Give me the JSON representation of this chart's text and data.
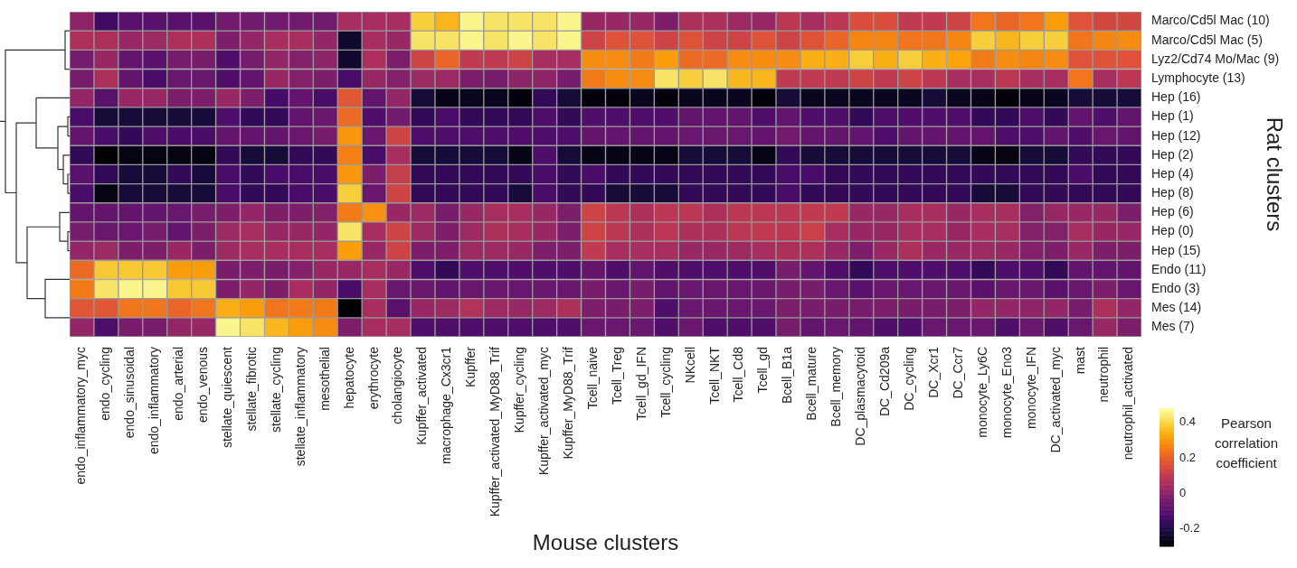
{
  "chart_data": {
    "type": "heatmap",
    "categories": [
      "endo_inflammatory_myc",
      "endo_cycling",
      "endo_sinusoidal",
      "endo_inflammatory",
      "endo_arterial",
      "endo_venous",
      "stellate_quiescent",
      "stellate_fibrotic",
      "stellate_cycling",
      "stellate_inflammatory",
      "mesothelial",
      "hepatocyte",
      "erythrocyte",
      "cholangiocyte",
      "Kupffer_activated",
      "macrophage_Cx3cr1",
      "Kupffer",
      "Kupffer_activated_MyD88_Trif",
      "Kupffer_cycling",
      "Kupffer_activated_myc",
      "Kupffer_MyD88_Trif",
      "Tcell_naive",
      "Tcell_Treg",
      "Tcell_gd_IFN",
      "Tcell_cycling",
      "NKcell",
      "Tcell_NKT",
      "Tcell_Cd8",
      "Tcell_gd",
      "Bcell_B1a",
      "Bcell_mature",
      "Bcell_memory",
      "DC_plasmacytoid",
      "DC_Cd209a",
      "DC_cycling",
      "DC_Xcr1",
      "DC_Ccr7",
      "monocyte_Ly6C",
      "monocyte_Eno3",
      "monocyte_IFN",
      "DC_activated_myc",
      "mast",
      "neutrophil",
      "neutrophil_activated"
    ],
    "y_categories": [
      "Marco/Cd5l Mac (10)",
      "Marco/Cd5l Mac (5)",
      "Lyz2/Cd74 Mo/Mac (9)",
      "Lymphocyte (13)",
      "Hep (16)",
      "Hep (1)",
      "Hep (12)",
      "Hep (2)",
      "Hep (4)",
      "Hep (8)",
      "Hep (6)",
      "Hep (0)",
      "Hep (15)",
      "Endo (11)",
      "Endo (3)",
      "Mes (14)",
      "Mes (7)"
    ],
    "cells": [
      [
        0.0,
        -0.15,
        -0.1,
        -0.1,
        -0.1,
        -0.1,
        -0.05,
        -0.05,
        -0.05,
        -0.05,
        -0.05,
        0.05,
        0.05,
        0.05,
        0.39,
        0.35,
        0.46,
        0.43,
        0.43,
        0.43,
        0.46,
        0.02,
        0.02,
        0.02,
        -0.03,
        0.06,
        0.06,
        0.03,
        0.02,
        0.09,
        0.05,
        0.09,
        0.16,
        0.16,
        0.1,
        0.1,
        0.13,
        0.24,
        0.21,
        0.24,
        0.31,
        0.17,
        0.14,
        0.14
      ],
      [
        0.06,
        0.06,
        0.02,
        0.03,
        0.06,
        0.06,
        -0.03,
        0.01,
        0.05,
        0.05,
        0.01,
        -0.24,
        0.05,
        0.02,
        0.43,
        0.43,
        0.46,
        0.43,
        0.46,
        0.43,
        0.46,
        0.13,
        0.17,
        0.17,
        0.13,
        0.17,
        0.13,
        0.13,
        0.17,
        0.13,
        0.17,
        0.21,
        0.27,
        0.27,
        0.24,
        0.24,
        0.27,
        0.39,
        0.35,
        0.39,
        0.39,
        0.24,
        0.27,
        0.28
      ],
      [
        -0.04,
        0.02,
        -0.08,
        -0.1,
        -0.04,
        -0.04,
        -0.12,
        -0.04,
        0.01,
        -0.02,
        0.0,
        -0.24,
        0.06,
        -0.03,
        0.13,
        0.21,
        0.1,
        0.1,
        0.13,
        0.05,
        0.05,
        0.28,
        0.28,
        0.25,
        0.31,
        0.22,
        0.22,
        0.28,
        0.28,
        0.28,
        0.34,
        0.34,
        0.39,
        0.34,
        0.39,
        0.34,
        0.32,
        0.25,
        0.28,
        0.27,
        0.28,
        0.17,
        0.17,
        0.17
      ],
      [
        -0.04,
        0.06,
        -0.08,
        -0.13,
        -0.07,
        -0.07,
        -0.12,
        -0.08,
        0.02,
        -0.02,
        -0.03,
        -0.13,
        0.02,
        -0.02,
        0.03,
        0.03,
        -0.03,
        -0.04,
        0.0,
        0.0,
        -0.04,
        0.25,
        0.28,
        0.28,
        0.43,
        0.39,
        0.43,
        0.35,
        0.35,
        0.1,
        0.1,
        0.1,
        0.13,
        0.1,
        0.13,
        0.09,
        0.05,
        0.05,
        0.09,
        0.05,
        0.05,
        0.24,
        0.05,
        0.09
      ],
      [
        0.01,
        -0.1,
        0.02,
        0.02,
        -0.03,
        -0.03,
        0.02,
        -0.03,
        -0.14,
        -0.08,
        -0.13,
        0.18,
        -0.08,
        0.01,
        -0.22,
        -0.27,
        -0.26,
        -0.26,
        -0.29,
        -0.17,
        -0.22,
        -0.29,
        -0.29,
        -0.26,
        -0.29,
        -0.26,
        -0.26,
        -0.26,
        -0.29,
        -0.22,
        -0.26,
        -0.26,
        -0.26,
        -0.26,
        -0.26,
        -0.22,
        -0.26,
        -0.27,
        -0.29,
        -0.27,
        -0.26,
        -0.22,
        -0.22,
        -0.22
      ],
      [
        -0.13,
        -0.22,
        -0.22,
        -0.22,
        -0.22,
        -0.22,
        -0.12,
        -0.17,
        -0.17,
        -0.08,
        -0.07,
        0.22,
        -0.12,
        -0.05,
        -0.17,
        -0.13,
        -0.17,
        -0.17,
        -0.17,
        -0.12,
        -0.17,
        -0.12,
        -0.12,
        -0.12,
        -0.12,
        -0.08,
        -0.08,
        -0.08,
        -0.12,
        -0.08,
        -0.12,
        -0.12,
        -0.17,
        -0.12,
        -0.12,
        -0.12,
        -0.12,
        -0.17,
        -0.17,
        -0.12,
        -0.17,
        -0.08,
        -0.12,
        -0.08
      ],
      [
        -0.08,
        -0.13,
        -0.17,
        -0.12,
        -0.13,
        -0.13,
        -0.08,
        -0.08,
        -0.08,
        -0.07,
        -0.04,
        0.3,
        -0.07,
        0.13,
        -0.12,
        -0.12,
        -0.12,
        -0.12,
        -0.12,
        -0.12,
        -0.12,
        -0.08,
        -0.08,
        -0.08,
        -0.08,
        -0.07,
        -0.07,
        -0.07,
        -0.08,
        -0.05,
        -0.08,
        -0.08,
        -0.08,
        -0.12,
        -0.08,
        -0.08,
        -0.08,
        -0.08,
        -0.12,
        -0.12,
        -0.08,
        -0.12,
        -0.07,
        -0.08
      ],
      [
        -0.17,
        -0.3,
        -0.28,
        -0.28,
        -0.28,
        -0.28,
        -0.17,
        -0.22,
        -0.22,
        -0.17,
        -0.17,
        0.26,
        -0.13,
        0.05,
        -0.22,
        -0.22,
        -0.22,
        -0.22,
        -0.27,
        -0.12,
        -0.22,
        -0.27,
        -0.27,
        -0.27,
        -0.27,
        -0.22,
        -0.22,
        -0.22,
        -0.27,
        -0.17,
        -0.22,
        -0.22,
        -0.22,
        -0.22,
        -0.22,
        -0.22,
        -0.22,
        -0.27,
        -0.28,
        -0.22,
        -0.22,
        -0.17,
        -0.17,
        -0.17
      ],
      [
        -0.1,
        -0.17,
        -0.22,
        -0.22,
        -0.17,
        -0.22,
        -0.13,
        -0.17,
        -0.13,
        -0.13,
        -0.13,
        0.3,
        -0.03,
        0.11,
        -0.17,
        -0.17,
        -0.17,
        -0.17,
        -0.17,
        -0.13,
        -0.17,
        -0.13,
        -0.17,
        -0.17,
        -0.17,
        -0.17,
        -0.17,
        -0.17,
        -0.17,
        -0.13,
        -0.13,
        -0.17,
        -0.17,
        -0.17,
        -0.17,
        -0.17,
        -0.17,
        -0.17,
        -0.17,
        -0.17,
        -0.17,
        -0.13,
        -0.17,
        -0.17
      ],
      [
        -0.13,
        -0.28,
        -0.22,
        -0.22,
        -0.22,
        -0.22,
        -0.13,
        -0.17,
        -0.17,
        -0.13,
        -0.13,
        0.39,
        -0.07,
        0.13,
        -0.17,
        -0.17,
        -0.17,
        -0.17,
        -0.22,
        -0.13,
        -0.17,
        -0.17,
        -0.22,
        -0.22,
        -0.22,
        -0.17,
        -0.17,
        -0.17,
        -0.17,
        -0.13,
        -0.17,
        -0.17,
        -0.17,
        -0.17,
        -0.17,
        -0.17,
        -0.17,
        -0.22,
        -0.22,
        -0.17,
        -0.17,
        -0.17,
        -0.17,
        -0.17
      ],
      [
        -0.08,
        -0.08,
        -0.08,
        -0.08,
        -0.07,
        -0.04,
        -0.03,
        0.01,
        -0.03,
        -0.03,
        -0.02,
        0.25,
        0.29,
        0.02,
        0.03,
        -0.04,
        0.02,
        0.05,
        0.05,
        0.02,
        -0.03,
        0.13,
        0.09,
        0.06,
        0.09,
        0.09,
        0.06,
        0.09,
        0.09,
        0.09,
        0.1,
        0.1,
        0.02,
        0.02,
        0.05,
        0.05,
        0.02,
        0.05,
        0.05,
        -0.02,
        0.02,
        0.02,
        0.02,
        -0.03
      ],
      [
        -0.04,
        -0.07,
        -0.07,
        -0.04,
        -0.08,
        -0.03,
        0.03,
        0.05,
        0.02,
        0.02,
        0.01,
        0.43,
        0.05,
        0.13,
        0.03,
        -0.03,
        0.03,
        0.06,
        0.05,
        0.02,
        -0.03,
        0.13,
        0.09,
        0.06,
        0.09,
        0.06,
        0.06,
        0.09,
        0.1,
        0.09,
        0.12,
        0.05,
        0.02,
        0.02,
        0.05,
        0.05,
        0.02,
        0.05,
        0.05,
        -0.02,
        -0.02,
        0.05,
        0.02,
        0.02
      ],
      [
        0.01,
        0.03,
        -0.03,
        -0.03,
        0.02,
        -0.03,
        0.03,
        0.05,
        0.05,
        0.05,
        0.05,
        0.31,
        0.02,
        0.13,
        -0.03,
        -0.03,
        0.03,
        0.03,
        0.02,
        -0.03,
        -0.03,
        0.1,
        0.05,
        0.05,
        0.05,
        0.02,
        0.02,
        0.03,
        0.05,
        0.06,
        0.06,
        0.02,
        -0.03,
        0.02,
        0.06,
        0.02,
        0.02,
        0.03,
        0.02,
        -0.02,
        -0.03,
        0.02,
        -0.03,
        -0.03
      ],
      [
        0.22,
        0.38,
        0.38,
        0.38,
        0.31,
        0.31,
        -0.04,
        -0.03,
        -0.04,
        -0.02,
        0.02,
        0.02,
        0.05,
        0.02,
        -0.12,
        -0.17,
        -0.12,
        -0.12,
        -0.12,
        -0.12,
        -0.12,
        -0.08,
        -0.12,
        -0.08,
        -0.12,
        -0.12,
        -0.12,
        -0.12,
        -0.12,
        -0.04,
        -0.08,
        -0.12,
        -0.17,
        -0.12,
        -0.12,
        -0.12,
        -0.12,
        -0.17,
        -0.12,
        -0.12,
        -0.17,
        -0.08,
        -0.08,
        -0.08
      ],
      [
        0.25,
        0.43,
        0.46,
        0.46,
        0.38,
        0.38,
        -0.03,
        0.01,
        -0.03,
        0.05,
        0.01,
        -0.13,
        0.05,
        -0.07,
        -0.07,
        -0.08,
        -0.07,
        -0.07,
        -0.07,
        -0.07,
        -0.07,
        -0.04,
        -0.07,
        -0.04,
        -0.08,
        -0.07,
        -0.07,
        -0.07,
        -0.07,
        -0.04,
        -0.04,
        -0.07,
        -0.1,
        -0.07,
        -0.07,
        -0.07,
        -0.07,
        -0.1,
        -0.07,
        -0.07,
        -0.1,
        -0.07,
        -0.03,
        -0.07
      ],
      [
        0.18,
        0.18,
        0.24,
        0.24,
        0.21,
        0.24,
        0.34,
        0.31,
        0.24,
        0.25,
        0.25,
        -0.3,
        0.05,
        -0.1,
        0.02,
        0.03,
        0.07,
        0.03,
        0.02,
        0.03,
        0.06,
        -0.03,
        -0.04,
        -0.03,
        -0.12,
        -0.07,
        -0.07,
        -0.07,
        -0.07,
        -0.03,
        -0.04,
        -0.04,
        -0.04,
        -0.03,
        -0.04,
        -0.04,
        -0.03,
        0.01,
        0.01,
        0.0,
        0.01,
        -0.04,
        0.06,
        0.01
      ],
      [
        0.01,
        -0.12,
        -0.04,
        -0.04,
        0.01,
        0.02,
        0.46,
        0.43,
        0.35,
        0.31,
        0.28,
        -0.03,
        0.05,
        0.05,
        -0.12,
        -0.12,
        -0.12,
        -0.12,
        -0.12,
        -0.12,
        -0.12,
        -0.07,
        -0.07,
        -0.07,
        -0.12,
        -0.07,
        -0.12,
        -0.12,
        -0.12,
        -0.04,
        -0.08,
        -0.07,
        -0.08,
        -0.12,
        -0.12,
        -0.07,
        -0.07,
        -0.07,
        -0.12,
        -0.07,
        -0.12,
        -0.07,
        0.02,
        -0.03
      ]
    ],
    "clim": [
      -0.3,
      0.48
    ],
    "cticks": [
      -0.2,
      0,
      0.2,
      0.4
    ],
    "xlabel": "Mouse clusters",
    "ylabel": "Rat clusters",
    "clabel": "Pearson correlation coefficient"
  }
}
